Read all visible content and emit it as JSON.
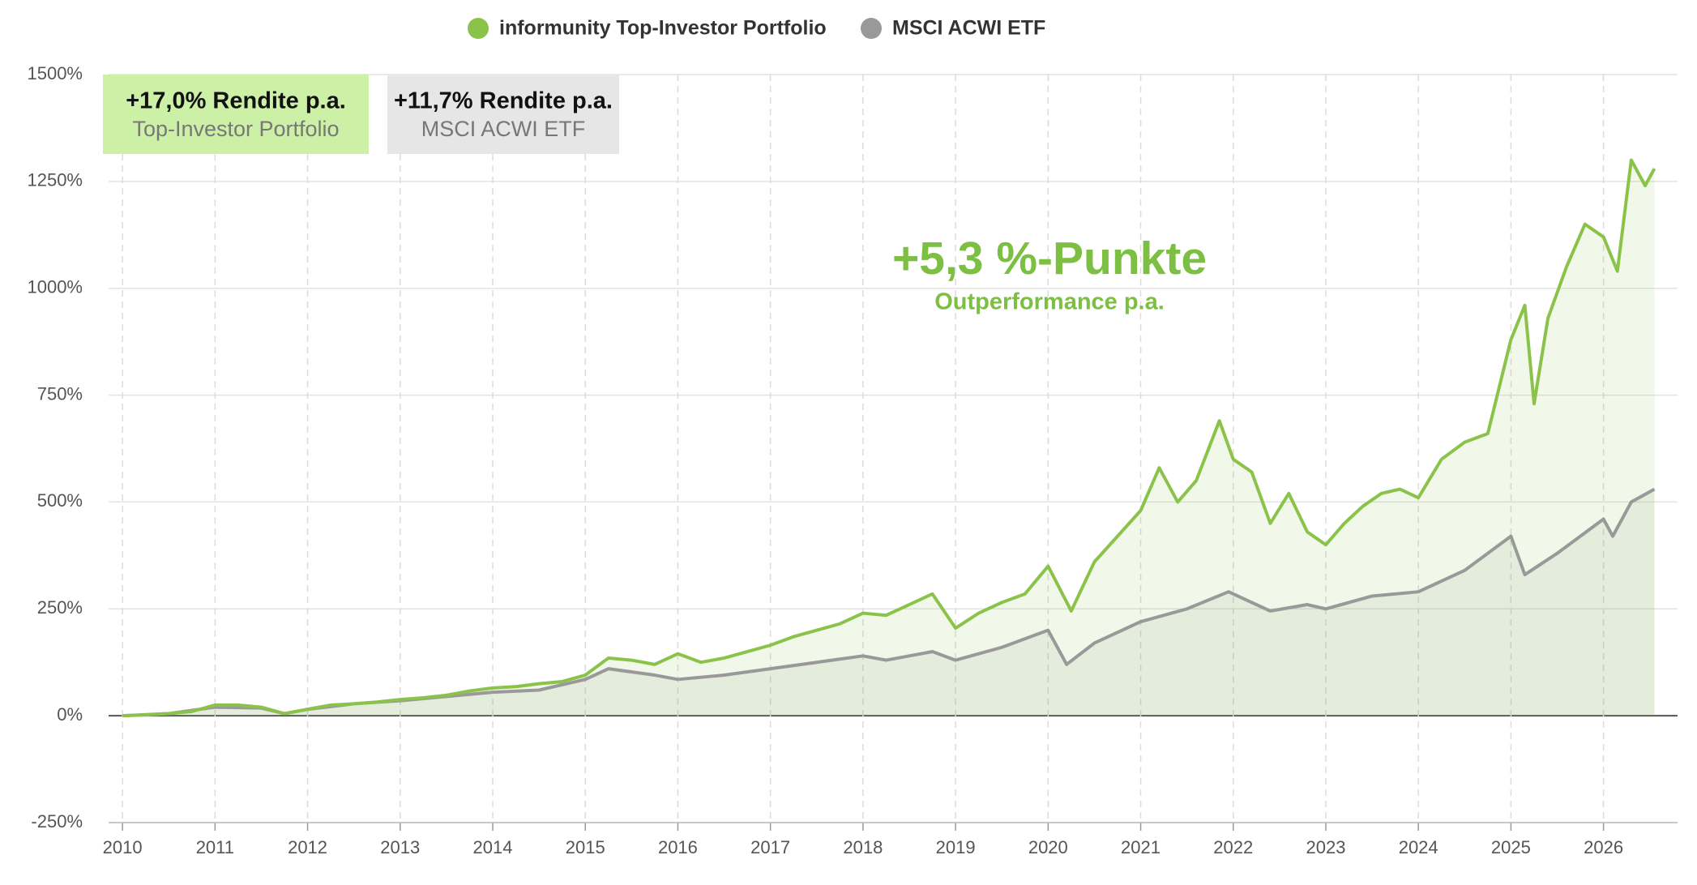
{
  "chart_data": {
    "type": "line",
    "series": [
      {
        "name": "informunity Top-Investor Portfolio",
        "color": "#8bc34a",
        "x": [
          2010.0,
          2010.25,
          2010.5,
          2010.75,
          2011.0,
          2011.25,
          2011.5,
          2011.75,
          2012.0,
          2012.25,
          2012.5,
          2012.75,
          2013.0,
          2013.25,
          2013.5,
          2013.75,
          2014.0,
          2014.25,
          2014.5,
          2014.75,
          2015.0,
          2015.25,
          2015.5,
          2015.75,
          2016.0,
          2016.25,
          2016.5,
          2016.75,
          2017.0,
          2017.25,
          2017.5,
          2017.75,
          2018.0,
          2018.25,
          2018.5,
          2018.75,
          2019.0,
          2019.25,
          2019.5,
          2019.75,
          2020.0,
          2020.25,
          2020.5,
          2020.75,
          2021.0,
          2021.2,
          2021.4,
          2021.6,
          2021.85,
          2022.0,
          2022.2,
          2022.4,
          2022.6,
          2022.8,
          2023.0,
          2023.2,
          2023.4,
          2023.6,
          2023.8,
          2024.0,
          2024.25,
          2024.5,
          2024.75,
          2025.0,
          2025.15,
          2025.25,
          2025.4,
          2025.6,
          2025.8,
          2026.0,
          2026.15,
          2026.3,
          2026.45,
          2026.55
        ],
        "values": [
          0,
          2,
          5,
          10,
          25,
          25,
          20,
          5,
          15,
          25,
          28,
          32,
          38,
          42,
          48,
          58,
          65,
          68,
          75,
          80,
          95,
          135,
          130,
          120,
          145,
          125,
          135,
          150,
          165,
          185,
          200,
          215,
          240,
          235,
          260,
          285,
          205,
          240,
          265,
          285,
          350,
          245,
          360,
          420,
          480,
          580,
          500,
          550,
          690,
          600,
          570,
          450,
          520,
          430,
          400,
          450,
          490,
          520,
          530,
          510,
          600,
          640,
          660,
          880,
          960,
          730,
          930,
          1050,
          1150,
          1120,
          1040,
          1300,
          1240,
          1280
        ]
      },
      {
        "name": "MSCI ACWI ETF",
        "color": "#999999",
        "x": [
          2010.0,
          2010.5,
          2011.0,
          2011.5,
          2011.75,
          2012.0,
          2012.5,
          2013.0,
          2013.5,
          2014.0,
          2014.5,
          2015.0,
          2015.25,
          2015.75,
          2016.0,
          2016.5,
          2017.0,
          2017.5,
          2018.0,
          2018.25,
          2018.75,
          2019.0,
          2019.5,
          2020.0,
          2020.2,
          2020.5,
          2021.0,
          2021.5,
          2021.95,
          2022.4,
          2022.8,
          2023.0,
          2023.5,
          2024.0,
          2024.5,
          2025.0,
          2025.15,
          2025.5,
          2026.0,
          2026.1,
          2026.3,
          2026.55
        ],
        "values": [
          0,
          5,
          20,
          18,
          5,
          15,
          28,
          35,
          45,
          55,
          60,
          85,
          110,
          95,
          85,
          95,
          110,
          125,
          140,
          130,
          150,
          130,
          160,
          200,
          120,
          170,
          220,
          250,
          290,
          245,
          260,
          250,
          280,
          290,
          340,
          420,
          330,
          380,
          460,
          420,
          500,
          530
        ]
      }
    ],
    "legend_position": "top",
    "summary_boxes": [
      {
        "value_label": "+17,0% Rendite p.a.",
        "label": "Top-Investor Portfolio",
        "color": "#ccf0a6"
      },
      {
        "value_label": "+11,7% Rendite p.a.",
        "label": "MSCI ACWI ETF",
        "color": "#e6e6e6"
      }
    ],
    "annotation": {
      "title": "+5,3 %-Punkte",
      "subtitle": "Outperformance p.a."
    },
    "xlim": [
      2009.85,
      2026.8
    ],
    "xticks": [
      2010,
      2011,
      2012,
      2013,
      2014,
      2015,
      2016,
      2017,
      2018,
      2019,
      2020,
      2021,
      2022,
      2023,
      2024,
      2025,
      2026
    ],
    "ylim": [
      -250,
      1500
    ],
    "yticks": [
      {
        "value": -250,
        "label": "-250%"
      },
      {
        "value": 0,
        "label": "0%"
      },
      {
        "value": 250,
        "label": "250%"
      },
      {
        "value": 500,
        "label": "500%"
      },
      {
        "value": 750,
        "label": "750%"
      },
      {
        "value": 1000,
        "label": "1000%"
      },
      {
        "value": 1250,
        "label": "1250%"
      },
      {
        "value": 1500,
        "label": "1500%"
      }
    ],
    "grid": true
  }
}
